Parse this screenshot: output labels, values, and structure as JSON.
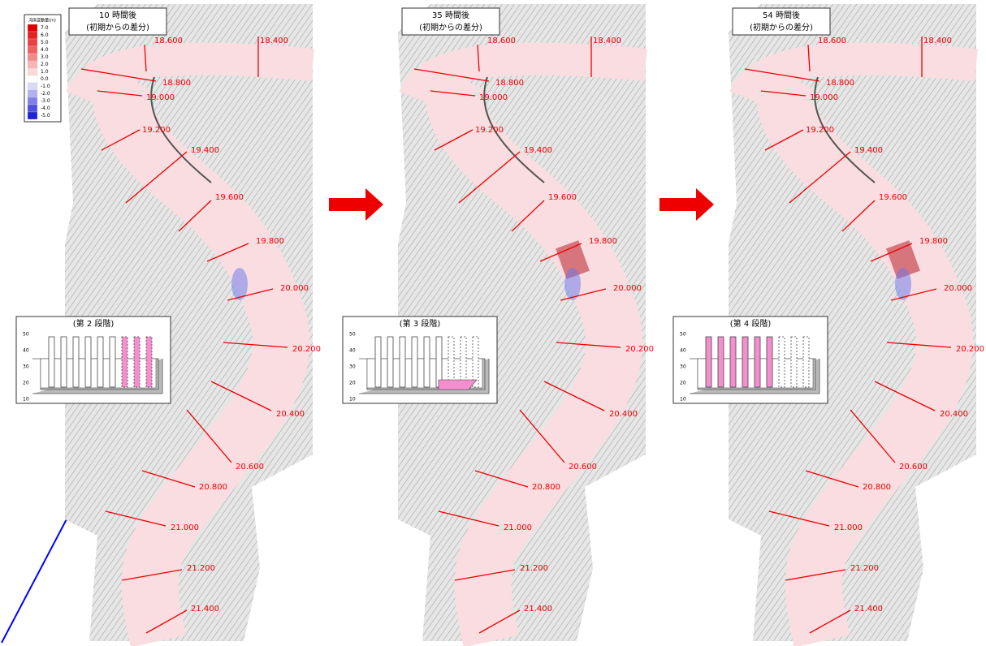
{
  "legend": {
    "title": "河床変動量(m)",
    "values": [
      "7.0",
      "6.0",
      "5.0",
      "4.0",
      "3.0",
      "2.0",
      "1.0",
      "0.0",
      "-1.0",
      "-2.0",
      "-3.0",
      "-4.0",
      "-5.0"
    ]
  },
  "panels": [
    {
      "title": "10 時間後",
      "subtitle": "(初期からの差分)",
      "stage": "(第 2 段階)"
    },
    {
      "title": "35 時間後",
      "subtitle": "(初期からの差分)",
      "stage": "(第 3 段階)"
    },
    {
      "title": "54 時間後",
      "subtitle": "(初期からの差分)",
      "stage": "(第 4 段階)"
    }
  ],
  "sections": [
    "18.600",
    "18.400",
    "18.800",
    "19.000",
    "19.200",
    "19.400",
    "19.600",
    "19.800",
    "20.000",
    "20.200",
    "20.400",
    "20.600",
    "20.800",
    "21.000",
    "21.200",
    "21.400"
  ],
  "inset_yticks": [
    "50",
    "40",
    "30",
    "20",
    "10"
  ]
}
